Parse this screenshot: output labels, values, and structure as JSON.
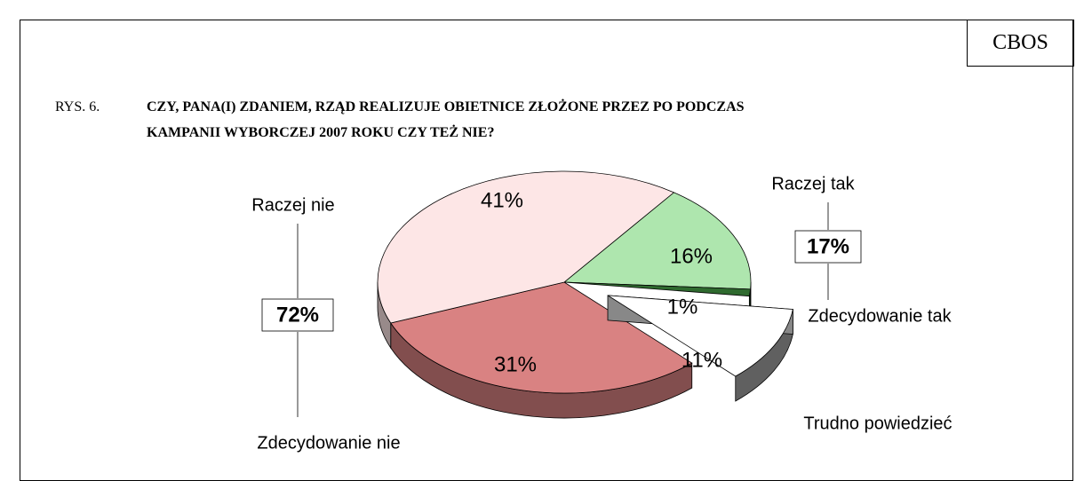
{
  "header": "CBOS",
  "figure_label": "RYS. 6.",
  "chart_data": {
    "type": "pie",
    "title": "CZY, PANA(I) ZDANIEM, RZĄD REALIZUJE OBIETNICE ZŁOŻONE PRZEZ PO PODCZAS KAMPANII WYBORCZEJ 2007 ROKU CZY TEŻ NIE?",
    "categories": [
      "Raczej tak",
      "Zdecydowanie tak",
      "Trudno powiedzieć",
      "Zdecydowanie nie",
      "Raczej nie"
    ],
    "values": [
      16,
      1,
      11,
      31,
      41
    ],
    "value_labels": [
      "16%",
      "1%",
      "11%",
      "31%",
      "41%"
    ],
    "colors": [
      "#aee6ae",
      "#2f6a2f",
      "#ffffff",
      "#d98282",
      "#fde6e6"
    ],
    "explode": [
      false,
      false,
      true,
      false,
      false
    ],
    "group_totals": [
      {
        "value": 17,
        "label": "17%"
      },
      {
        "value": 72,
        "label": "72%"
      }
    ]
  }
}
